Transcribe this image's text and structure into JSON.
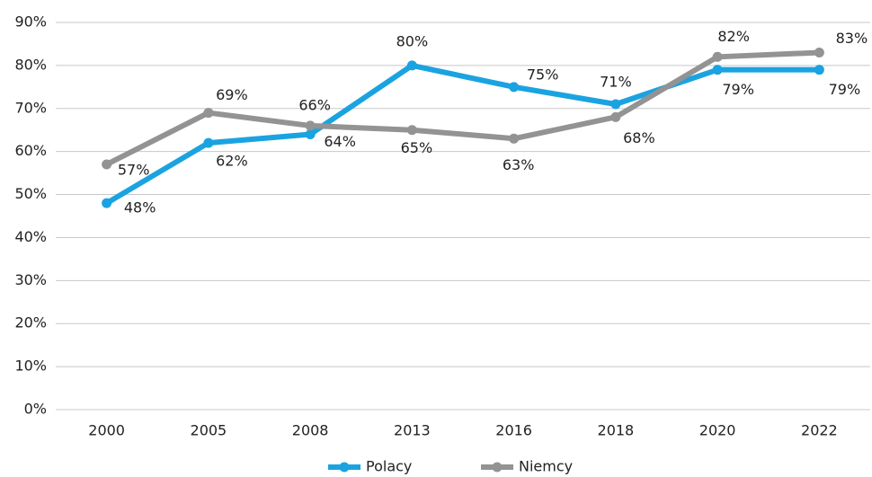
{
  "chart_data": {
    "type": "line",
    "categories": [
      "2000",
      "2005",
      "2008",
      "2013",
      "2016",
      "2018",
      "2020",
      "2022"
    ],
    "series": [
      {
        "name": "Polacy",
        "color": "#1aa3e0",
        "values": [
          48,
          62,
          64,
          80,
          75,
          71,
          79,
          79
        ],
        "value_labels": [
          "48%",
          "62%",
          "64%",
          "80%",
          "75%",
          "71%",
          "79%",
          "79%"
        ]
      },
      {
        "name": "Niemcy",
        "color": "#939393",
        "values": [
          57,
          69,
          66,
          65,
          63,
          68,
          82,
          83
        ],
        "value_labels": [
          "57%",
          "69%",
          "66%",
          "65%",
          "63%",
          "68%",
          "82%",
          "83%"
        ]
      }
    ],
    "ylim": [
      0,
      90
    ],
    "yticks": [
      {
        "value": 0,
        "label": "0%"
      },
      {
        "value": 10,
        "label": "10%"
      },
      {
        "value": 20,
        "label": "20%"
      },
      {
        "value": 30,
        "label": "30%"
      },
      {
        "value": 40,
        "label": "40%"
      },
      {
        "value": 50,
        "label": "50%"
      },
      {
        "value": 60,
        "label": "60%"
      },
      {
        "value": 70,
        "label": "70%"
      },
      {
        "value": 80,
        "label": "80%"
      },
      {
        "value": 90,
        "label": "90%"
      }
    ],
    "grid": true,
    "legend": "bottom"
  }
}
